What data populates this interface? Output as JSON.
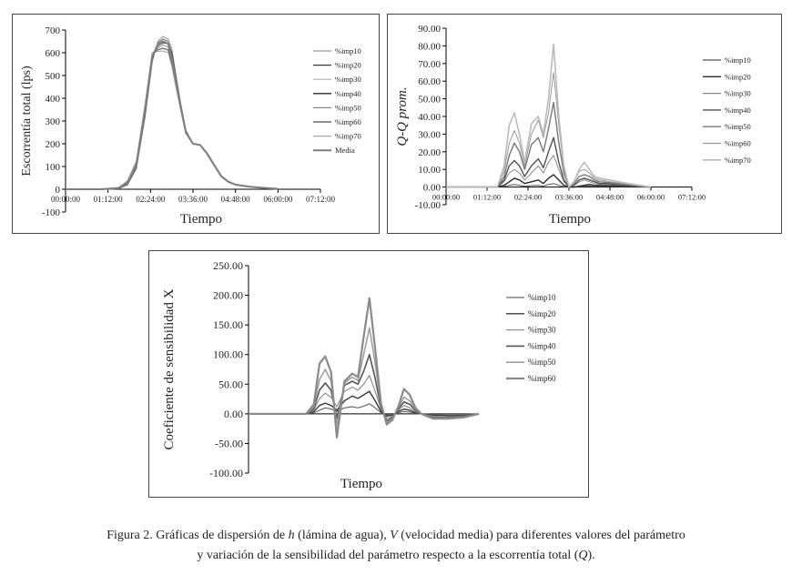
{
  "caption": {
    "prefix": "Figura 2. Gráficas de dispersión de ",
    "h": "h",
    "mid1": " (lámina de agua), ",
    "V": "V",
    "mid2": " (velocidad media) para diferentes valores del parámetro",
    "line2": "y variación de la sensibilidad del parámetro respecto a la escorrentía total (",
    "Q": "Q",
    "suffix": ")."
  },
  "colors": {
    "axis": "#000000",
    "text": "#222222"
  },
  "chart_data": [
    {
      "id": "escorrentia",
      "type": "line",
      "title": "",
      "xlabel": "Tiempo",
      "ylabel": "Escorrentía total (lps)",
      "ylim": [
        -100,
        700
      ],
      "yticks": [
        -100,
        0,
        100,
        200,
        300,
        400,
        500,
        600,
        700
      ],
      "ytick_labels": [
        "-100",
        "0",
        "100",
        "200",
        "300",
        "400",
        "500",
        "600",
        "700"
      ],
      "xlim": [
        0,
        7.2
      ],
      "xticks": [
        0,
        1.2,
        2.4,
        3.6,
        4.8,
        6.0,
        7.2
      ],
      "xtick_labels": [
        "00:00:00",
        "01:12:00",
        "02:24:00",
        "03:36:00",
        "04:48:00",
        "06:00:00",
        "07:12:00"
      ],
      "x": [
        0,
        0.5,
        1.0,
        1.5,
        1.75,
        2.0,
        2.25,
        2.45,
        2.6,
        2.75,
        2.9,
        3.0,
        3.1,
        3.25,
        3.4,
        3.6,
        3.8,
        4.0,
        4.2,
        4.4,
        4.6,
        4.8,
        5.2,
        5.6,
        6.0
      ],
      "series": [
        {
          "name": "%imp10",
          "color": "#9a9a9a",
          "width": 1,
          "values": [
            0,
            0,
            0,
            2,
            20,
            90,
            320,
            560,
            650,
            672,
            660,
            620,
            520,
            380,
            260,
            200,
            195,
            160,
            110,
            60,
            35,
            22,
            12,
            6,
            2
          ]
        },
        {
          "name": "%imp20",
          "color": "#3a3a3a",
          "width": 1,
          "values": [
            0,
            0,
            0,
            3,
            22,
            95,
            330,
            570,
            640,
            660,
            650,
            600,
            510,
            375,
            255,
            200,
            195,
            158,
            108,
            58,
            34,
            21,
            12,
            6,
            2
          ]
        },
        {
          "name": "%imp30",
          "color": "#b0b0b0",
          "width": 1,
          "values": [
            0,
            0,
            0,
            4,
            25,
            100,
            340,
            580,
            645,
            662,
            652,
            585,
            500,
            370,
            250,
            200,
            195,
            157,
            107,
            58,
            33,
            21,
            11,
            6,
            2
          ]
        },
        {
          "name": "%imp40",
          "color": "#2a2a2a",
          "width": 1.4,
          "values": [
            0,
            0,
            0,
            5,
            28,
            105,
            350,
            590,
            630,
            645,
            640,
            570,
            490,
            365,
            250,
            200,
            195,
            156,
            106,
            57,
            33,
            20,
            11,
            6,
            2
          ]
        },
        {
          "name": "%imp50",
          "color": "#8a8a8a",
          "width": 1,
          "values": [
            0,
            0,
            0,
            6,
            30,
            110,
            360,
            595,
            620,
            635,
            625,
            560,
            480,
            360,
            248,
            200,
            195,
            155,
            105,
            57,
            33,
            20,
            11,
            6,
            2
          ]
        },
        {
          "name": "%imp60",
          "color": "#6a6a6a",
          "width": 1.4,
          "values": [
            0,
            0,
            0,
            7,
            34,
            118,
            370,
            598,
            612,
            620,
            612,
            548,
            470,
            355,
            246,
            200,
            195,
            154,
            104,
            56,
            32,
            20,
            11,
            6,
            2
          ]
        },
        {
          "name": "%imp70",
          "color": "#a5a5a5",
          "width": 1,
          "values": [
            0,
            0,
            0,
            8,
            38,
            125,
            380,
            600,
            605,
            608,
            600,
            540,
            460,
            350,
            244,
            200,
            195,
            153,
            103,
            56,
            32,
            19,
            11,
            6,
            2
          ]
        },
        {
          "name": "Media",
          "color": "#7e7e7e",
          "width": 2,
          "values": [
            0,
            0,
            0,
            5,
            28,
            106,
            350,
            585,
            630,
            650,
            640,
            575,
            490,
            365,
            250,
            200,
            195,
            156,
            106,
            57,
            33,
            20,
            11,
            6,
            2
          ]
        }
      ]
    },
    {
      "id": "qq",
      "type": "line",
      "title": "",
      "xlabel": "Tiempo",
      "ylabel": "Q-Q prom.",
      "ylim": [
        -10,
        90
      ],
      "yticks": [
        -10,
        0,
        10,
        20,
        30,
        40,
        50,
        60,
        70,
        80,
        90
      ],
      "ytick_labels": [
        "-10.00",
        "0.00",
        "10.00",
        "20.00",
        "30.00",
        "40.00",
        "50.00",
        "60.00",
        "70.00",
        "80.00",
        "90.00"
      ],
      "xlim": [
        0,
        7.2
      ],
      "xticks": [
        0,
        1.2,
        2.4,
        3.6,
        4.8,
        6.0,
        7.2
      ],
      "xtick_labels": [
        "00:00:00",
        "01:12:00",
        "02:24:00",
        "03:36:00",
        "04:48:00",
        "06:00:00",
        "07:12:00"
      ],
      "x": [
        0,
        1.2,
        1.5,
        1.7,
        1.85,
        2.0,
        2.15,
        2.3,
        2.5,
        2.7,
        2.85,
        3.0,
        3.15,
        3.3,
        3.45,
        3.6,
        3.75,
        3.9,
        4.05,
        4.2,
        4.35,
        4.5,
        4.8,
        5.2,
        5.6,
        6.0
      ],
      "series": [
        {
          "name": "%imp10",
          "color": "#555555",
          "width": 1,
          "values": [
            0,
            0,
            0,
            0.3,
            1.0,
            1.5,
            1.0,
            0.4,
            0.8,
            1.0,
            0.5,
            1.5,
            2.0,
            1.0,
            0.2,
            0,
            0,
            0.2,
            0.4,
            0.6,
            0.4,
            0.3,
            0.3,
            0.2,
            0.1,
            0
          ]
        },
        {
          "name": "%imp20",
          "color": "#2a2a2a",
          "width": 1.4,
          "values": [
            0,
            0,
            0,
            1,
            3,
            5,
            4,
            2,
            3,
            4,
            2,
            5,
            7,
            4,
            1,
            0,
            0,
            0.5,
            1,
            1.5,
            1,
            0.8,
            0.8,
            0.5,
            0.3,
            0
          ]
        },
        {
          "name": "%imp30",
          "color": "#888888",
          "width": 1,
          "values": [
            0,
            0,
            0,
            3,
            8,
            10,
            8,
            4,
            8,
            12,
            8,
            14,
            18,
            10,
            3,
            0,
            1,
            3,
            4,
            3,
            2,
            1.5,
            1.5,
            1,
            0.5,
            0
          ]
        },
        {
          "name": "%imp40",
          "color": "#505050",
          "width": 1.4,
          "values": [
            0,
            0,
            0,
            4,
            12,
            15,
            12,
            6,
            12,
            16,
            11,
            20,
            28,
            14,
            4,
            0,
            1,
            4,
            5,
            4,
            3,
            2,
            2,
            1.2,
            0.6,
            0
          ]
        },
        {
          "name": "%imp50",
          "color": "#777777",
          "width": 1.4,
          "values": [
            0,
            0,
            0,
            6,
            18,
            25,
            20,
            10,
            24,
            28,
            20,
            33,
            48,
            25,
            8,
            0,
            2,
            6,
            7,
            6,
            4,
            3,
            2.5,
            1.5,
            0.8,
            0
          ]
        },
        {
          "name": "%imp60",
          "color": "#999999",
          "width": 1,
          "values": [
            0,
            0,
            0,
            9,
            25,
            32,
            25,
            12,
            30,
            38,
            28,
            42,
            65,
            35,
            10,
            0,
            3,
            9,
            10,
            8,
            5,
            4,
            3,
            2,
            1,
            0
          ]
        },
        {
          "name": "%imp70",
          "color": "#bbbbbb",
          "width": 1.6,
          "values": [
            0,
            0,
            0,
            12,
            35,
            42,
            30,
            14,
            36,
            40,
            30,
            50,
            81,
            40,
            12,
            0,
            3,
            10,
            14,
            10,
            6,
            5,
            4,
            2.5,
            1.2,
            0
          ]
        }
      ]
    },
    {
      "id": "sensibilidad",
      "type": "line",
      "title": "",
      "xlabel": "Tiempo",
      "ylabel": "Coeficiente de sensibilidad X",
      "ylim": [
        -100,
        250
      ],
      "yticks": [
        -100,
        -50,
        0,
        50,
        100,
        150,
        200,
        250
      ],
      "ytick_labels": [
        "-100.00",
        "-50.00",
        "0.00",
        "50.00",
        "100.00",
        "150.00",
        "200.00",
        "250.00"
      ],
      "x": [
        0,
        1.2,
        1.5,
        1.7,
        1.85,
        2.0,
        2.15,
        2.3,
        2.5,
        2.7,
        2.85,
        3.0,
        3.15,
        3.3,
        3.45,
        3.6,
        3.75,
        3.9,
        4.05,
        4.2,
        4.35,
        4.5,
        4.8,
        5.2,
        5.6,
        6.0
      ],
      "series": [
        {
          "name": "%imp10",
          "color": "#6a6a6a",
          "width": 1.2,
          "values": [
            0,
            0,
            0,
            2,
            6,
            10,
            8,
            4,
            10,
            12,
            10,
            13,
            17,
            10,
            2,
            -2,
            -1,
            2,
            4,
            3,
            1,
            0,
            -1,
            -1,
            -1,
            0
          ]
        },
        {
          "name": "%imp20",
          "color": "#3a3a3a",
          "width": 1.4,
          "values": [
            0,
            0,
            0,
            4,
            14,
            18,
            14,
            6,
            22,
            30,
            26,
            32,
            38,
            22,
            4,
            -4,
            -2,
            4,
            8,
            6,
            2,
            0,
            -2,
            -3,
            -3,
            0
          ]
        },
        {
          "name": "%imp30",
          "color": "#909090",
          "width": 1.2,
          "values": [
            0,
            0,
            0,
            6,
            26,
            35,
            28,
            12,
            38,
            45,
            40,
            50,
            65,
            38,
            8,
            -8,
            -4,
            6,
            14,
            10,
            4,
            0,
            -4,
            -5,
            -4,
            0
          ]
        },
        {
          "name": "%imp40",
          "color": "#555555",
          "width": 1.6,
          "values": [
            0,
            0,
            0,
            9,
            40,
            52,
            40,
            -8,
            48,
            55,
            50,
            72,
            100,
            60,
            10,
            -12,
            -6,
            8,
            20,
            16,
            6,
            0,
            -6,
            -6,
            -5,
            0
          ]
        },
        {
          "name": "%imp50",
          "color": "#a0a0a0",
          "width": 1.6,
          "values": [
            0,
            0,
            0,
            12,
            58,
            75,
            55,
            -20,
            52,
            62,
            56,
            100,
            145,
            85,
            14,
            -15,
            -8,
            10,
            28,
            22,
            8,
            0,
            -7,
            -7,
            -6,
            0
          ]
        },
        {
          "name": "%imp60",
          "color": "#8a8a8a",
          "width": 2.2,
          "values": [
            0,
            0,
            0,
            16,
            85,
            97,
            70,
            -40,
            55,
            68,
            62,
            130,
            195,
            110,
            18,
            -18,
            -10,
            12,
            42,
            32,
            10,
            0,
            -8,
            -8,
            -6,
            0
          ]
        }
      ]
    }
  ]
}
